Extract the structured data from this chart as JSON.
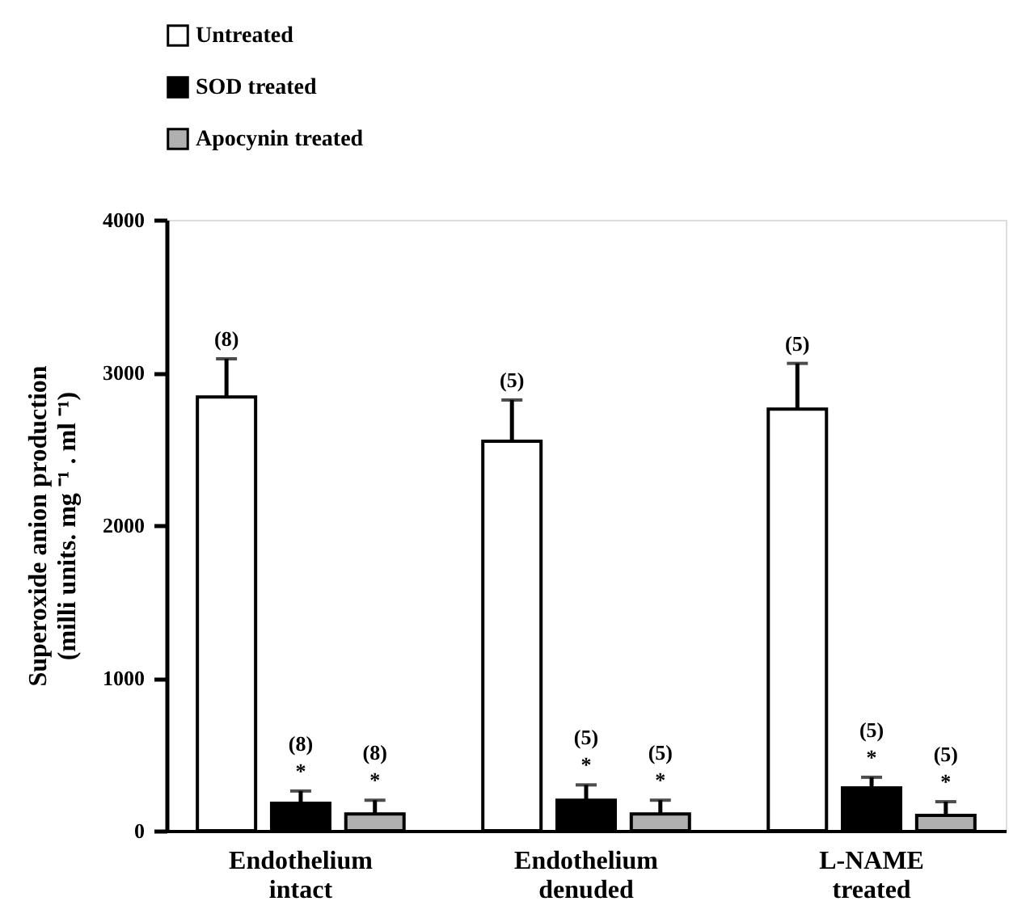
{
  "chart_data": {
    "type": "bar",
    "ylabel": "Superoxide anion production\n(milli units. mg ⁻¹ . ml ⁻¹)",
    "categories": [
      "Endothelium intact",
      "Endothelium denuded",
      "L-NAME treated"
    ],
    "series": [
      {
        "name": "Untreated",
        "color": "#ffffff",
        "values": [
          2840,
          2550,
          2760
        ],
        "errors": [
          [
            2840,
            3090
          ],
          [
            2550,
            2820
          ],
          [
            2760,
            3060
          ]
        ]
      },
      {
        "name": "SOD treated",
        "color": "#000000",
        "values": [
          180,
          200,
          280
        ],
        "errors": [
          [
            180,
            260
          ],
          [
            200,
            300
          ],
          [
            280,
            350
          ]
        ]
      },
      {
        "name": "Apocynin treated",
        "color": "#b0b0b0",
        "values": [
          110,
          110,
          100
        ],
        "errors": [
          [
            110,
            200
          ],
          [
            110,
            200
          ],
          [
            100,
            190
          ]
        ]
      }
    ],
    "annotations": [
      "(8)",
      "(5)",
      "(5)",
      "(8)\n*",
      "(5)\n*",
      "(5)\n*",
      "(8)\n*",
      "(5)\n*",
      "(5)\n*"
    ],
    "ylim": [
      0,
      4000
    ],
    "yticks": [
      0,
      1000,
      2000,
      3000,
      4000
    ],
    "grid": false,
    "legend": "top left"
  }
}
